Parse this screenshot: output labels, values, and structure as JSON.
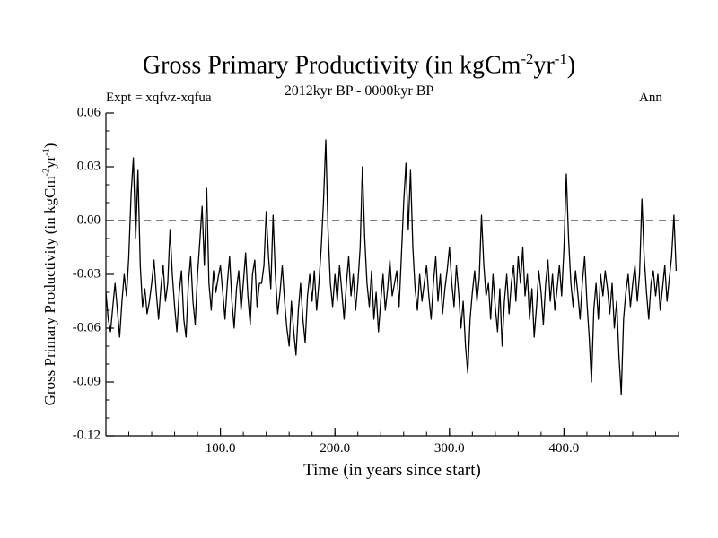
{
  "header": {
    "title_parts": {
      "pre": "Gross Primary Productivity (in kgCm",
      "sup1": "-2",
      "mid": "yr",
      "sup2": "-1",
      "post": ")"
    },
    "subtitle": "2012kyr BP - 0000kyr BP",
    "expt_label": "Expt = xqfvz-xqfua",
    "right_label": "Ann"
  },
  "axis": {
    "ylabel_parts": {
      "pre": "Gross Primary Productivity (in kgCm",
      "sup1": "-2",
      "mid": "yr",
      "sup2": "-1",
      "post": ")"
    },
    "xlabel": "Time (in years since start)"
  },
  "chart_data": {
    "type": "line",
    "title": "Gross Primary Productivity (in kgCm^-2 yr^-1)",
    "subtitle": "2012kyr BP - 0000kyr BP",
    "annotation_left": "Expt = xqfvz-xqfua",
    "annotation_right": "Ann",
    "xlabel": "Time (in years since start)",
    "ylabel": "Gross Primary Productivity (in kgCm^-2 yr^-1)",
    "xlim": [
      0,
      500
    ],
    "ylim": [
      -0.12,
      0.06
    ],
    "x_ticks": [
      100,
      200,
      300,
      400
    ],
    "x_tick_labels": [
      "100.0",
      "200.0",
      "300.0",
      "400.0"
    ],
    "x_minor_step": 20,
    "y_ticks": [
      0.06,
      0.03,
      0.0,
      -0.03,
      -0.06,
      -0.09,
      -0.12
    ],
    "y_tick_labels": [
      "0.06",
      "0.03",
      "0.00",
      "-0.03",
      "-0.06",
      "-0.09",
      "-0.12"
    ],
    "y_minor_step": 0.01,
    "zero_line": {
      "y": 0.0,
      "style": "dashed"
    },
    "grid": false,
    "legend": false,
    "line_color": "#000000",
    "x_start": 0,
    "x_step": 2,
    "values_scale": 0.001,
    "values": [
      -40,
      -55,
      -62,
      -48,
      -35,
      -50,
      -65,
      -45,
      -30,
      -42,
      -20,
      15,
      35,
      -10,
      28,
      -25,
      -48,
      -38,
      -52,
      -45,
      -35,
      -22,
      -40,
      -55,
      -38,
      -25,
      -45,
      -35,
      -5,
      -30,
      -48,
      -62,
      -40,
      -28,
      -55,
      -65,
      -35,
      -20,
      -45,
      -58,
      -30,
      -12,
      8,
      -25,
      18,
      -35,
      -50,
      -28,
      -40,
      -32,
      -25,
      -40,
      -55,
      -35,
      -20,
      -45,
      -60,
      -38,
      -28,
      -50,
      -35,
      -18,
      -42,
      -58,
      -30,
      -22,
      -48,
      -35,
      -35,
      -25,
      5,
      -20,
      -38,
      3,
      -30,
      -52,
      -40,
      -25,
      -45,
      -60,
      -70,
      -45,
      -62,
      -75,
      -50,
      -35,
      -55,
      -68,
      -42,
      -30,
      -45,
      -28,
      -50,
      -35,
      -15,
      10,
      45,
      -5,
      -35,
      -48,
      -30,
      -45,
      -25,
      -40,
      -55,
      -35,
      -20,
      -42,
      -30,
      -50,
      -35,
      -15,
      30,
      -10,
      -35,
      -48,
      -28,
      -55,
      -40,
      -62,
      -45,
      -30,
      -50,
      -38,
      -22,
      -42,
      -35,
      -28,
      -48,
      -20,
      10,
      32,
      -5,
      28,
      -15,
      -38,
      -50,
      -30,
      -45,
      -35,
      -25,
      -42,
      -55,
      -35,
      -20,
      -45,
      -30,
      -52,
      -38,
      -28,
      -15,
      -35,
      -48,
      -25,
      -40,
      -60,
      -45,
      -70,
      -85,
      -55,
      -40,
      -28,
      -45,
      -32,
      3,
      -25,
      -42,
      -35,
      -55,
      -30,
      -48,
      -62,
      -38,
      -70,
      -45,
      -30,
      -52,
      -35,
      -25,
      -45,
      -20,
      -35,
      -15,
      -42,
      -30,
      -55,
      -38,
      -65,
      -48,
      -28,
      -40,
      -58,
      -35,
      -22,
      -45,
      -30,
      -50,
      -38,
      -25,
      -42,
      -15,
      26,
      -10,
      -35,
      -48,
      -28,
      -40,
      -55,
      -35,
      -20,
      -45,
      -65,
      -90,
      -50,
      -35,
      -55,
      -30,
      -42,
      -28,
      -38,
      -52,
      -35,
      -60,
      -45,
      -75,
      -97,
      -55,
      -40,
      -30,
      -48,
      -35,
      -25,
      -45,
      -30,
      12,
      -20,
      -40,
      -55,
      -35,
      -28,
      -42,
      -30,
      -50,
      -38,
      -25,
      -45,
      -32,
      -20,
      3,
      -28
    ]
  }
}
